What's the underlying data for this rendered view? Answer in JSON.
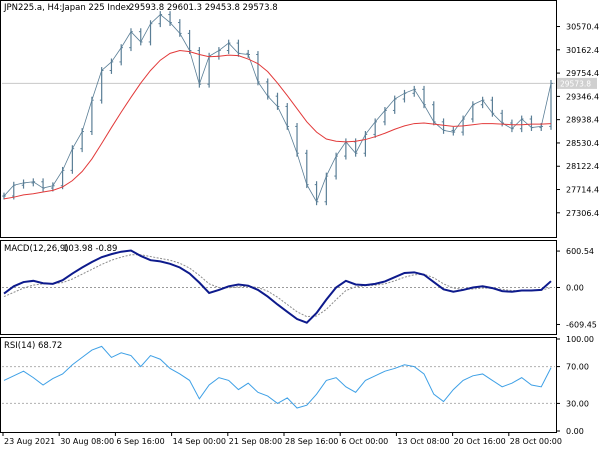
{
  "chart_data": [
    {
      "type": "line",
      "panel": "price",
      "header": {
        "symbol": "JPN225.a, H4:",
        "description": "Japan 225 Index",
        "ohlc": "29593.8 29601.3 29453.8 29573.8"
      },
      "current_price_label": "29573.8",
      "y_ticks": [
        30570.4,
        30162.4,
        29754.4,
        29346.4,
        28938.4,
        28530.4,
        28122.4,
        27714.4,
        27306.4
      ],
      "ylim": [
        26900,
        31000
      ],
      "x_ticks": [
        "23 Aug 2021",
        "30 Aug 08:00",
        "6 Sep 16:00",
        "14 Sep 00:00",
        "21 Sep 08:00",
        "28 Sep 16:00",
        "6 Oct 00:00",
        "13 Oct 08:00",
        "20 Oct 16:00",
        "28 Oct 00:00"
      ],
      "series": [
        {
          "role": "price bars",
          "color": "#5a7e96",
          "x": [
            0,
            10,
            20,
            30,
            40,
            50,
            60,
            70,
            80,
            90,
            100,
            110,
            120,
            130,
            140,
            150,
            160,
            170,
            180,
            190,
            200,
            210,
            220,
            230,
            240,
            250,
            260,
            270,
            280,
            290,
            300,
            310,
            320,
            330,
            340,
            350,
            360,
            370,
            380,
            390,
            400,
            410,
            420,
            430,
            440,
            450,
            460,
            470,
            480,
            490,
            500,
            510,
            520,
            530,
            540,
            550,
            560
          ],
          "values": [
            27600,
            27790,
            27830,
            27850,
            27740,
            27780,
            28050,
            28430,
            28730,
            29280,
            29800,
            29950,
            30200,
            30480,
            30300,
            30620,
            30780,
            30640,
            30450,
            30150,
            29560,
            30050,
            30150,
            30280,
            30100,
            30080,
            29600,
            29350,
            29170,
            28820,
            28350,
            27800,
            27500,
            27950,
            28300,
            28550,
            28350,
            28680,
            28900,
            29100,
            29300,
            29400,
            29470,
            29200,
            28900,
            28750,
            28720,
            28950,
            29200,
            29280,
            29050,
            28880,
            28780,
            28950,
            28800,
            28820,
            29573.8
          ]
        },
        {
          "role": "moving average",
          "color": "#e23a3a",
          "x": [
            0,
            10,
            20,
            30,
            40,
            50,
            60,
            70,
            80,
            90,
            100,
            110,
            120,
            130,
            140,
            150,
            160,
            170,
            180,
            190,
            200,
            210,
            220,
            230,
            240,
            250,
            260,
            270,
            280,
            290,
            300,
            310,
            320,
            330,
            340,
            350,
            360,
            370,
            380,
            390,
            400,
            410,
            420,
            430,
            440,
            450,
            460,
            470,
            480,
            490,
            500,
            510,
            520,
            530,
            540,
            550,
            560
          ],
          "values": [
            27550,
            27580,
            27620,
            27640,
            27670,
            27700,
            27760,
            27870,
            28030,
            28250,
            28520,
            28800,
            29070,
            29330,
            29580,
            29800,
            29980,
            30100,
            30150,
            30130,
            30080,
            30040,
            30050,
            30070,
            30060,
            30000,
            29920,
            29780,
            29580,
            29360,
            29130,
            28900,
            28720,
            28600,
            28560,
            28550,
            28560,
            28590,
            28640,
            28700,
            28770,
            28830,
            28870,
            28880,
            28860,
            28840,
            28820,
            28830,
            28850,
            28870,
            28870,
            28860,
            28850,
            28850,
            28860,
            28860,
            28870
          ]
        }
      ]
    },
    {
      "type": "line",
      "panel": "macd",
      "header": {
        "label": "MACD(12,26,9)",
        "values_text": "103.98 -0.89"
      },
      "y_ticks": [
        600.54,
        0.0,
        -609.45
      ],
      "y_tick_labels": [
        "600.54",
        "0.00",
        "-609.45"
      ],
      "ylim": [
        -750,
        750
      ],
      "series": [
        {
          "role": "macd line",
          "color": "#0d1a8c",
          "x": [
            0,
            10,
            20,
            30,
            40,
            50,
            60,
            70,
            80,
            90,
            100,
            110,
            120,
            130,
            140,
            150,
            160,
            170,
            180,
            190,
            200,
            210,
            220,
            230,
            240,
            250,
            260,
            270,
            280,
            290,
            300,
            310,
            320,
            330,
            340,
            350,
            360,
            370,
            380,
            390,
            400,
            410,
            420,
            430,
            440,
            450,
            460,
            470,
            480,
            490,
            500,
            510,
            520,
            530,
            540,
            550,
            560
          ],
          "values": [
            -100,
            20,
            90,
            110,
            70,
            60,
            120,
            230,
            330,
            420,
            500,
            550,
            590,
            610,
            520,
            450,
            430,
            390,
            330,
            230,
            80,
            -90,
            -40,
            20,
            50,
            30,
            -40,
            -150,
            -280,
            -400,
            -520,
            -580,
            -420,
            -200,
            0,
            110,
            50,
            40,
            60,
            100,
            170,
            240,
            250,
            210,
            90,
            -30,
            -70,
            -40,
            0,
            20,
            -10,
            -60,
            -70,
            -50,
            -50,
            -40,
            103.98
          ]
        },
        {
          "role": "signal line",
          "color": "#8c8c8c",
          "x": [
            0,
            10,
            20,
            30,
            40,
            50,
            60,
            70,
            80,
            90,
            100,
            110,
            120,
            130,
            140,
            150,
            160,
            170,
            180,
            190,
            200,
            210,
            220,
            230,
            240,
            250,
            260,
            270,
            280,
            290,
            300,
            310,
            320,
            330,
            340,
            350,
            360,
            370,
            380,
            390,
            400,
            410,
            420,
            430,
            440,
            450,
            460,
            470,
            480,
            490,
            500,
            510,
            520,
            530,
            540,
            550,
            560
          ],
          "values": [
            -150,
            -80,
            -10,
            40,
            60,
            65,
            80,
            140,
            220,
            300,
            380,
            450,
            500,
            540,
            540,
            510,
            480,
            450,
            400,
            320,
            200,
            60,
            0,
            -5,
            10,
            20,
            0,
            -60,
            -160,
            -280,
            -400,
            -480,
            -470,
            -360,
            -200,
            -50,
            10,
            30,
            40,
            60,
            110,
            170,
            210,
            220,
            160,
            60,
            -10,
            -30,
            -25,
            -10,
            -10,
            -30,
            -50,
            -55,
            -50,
            -45,
            -0.89
          ]
        }
      ]
    },
    {
      "type": "line",
      "panel": "rsi",
      "header": {
        "label": "RSI(14)",
        "value_text": "68.72"
      },
      "y_ticks": [
        100.0,
        70.0,
        30.0,
        0.0
      ],
      "y_tick_labels": [
        "100.00",
        "70.00",
        "30.00",
        "0.00"
      ],
      "ylim": [
        0,
        100
      ],
      "series": [
        {
          "role": "rsi",
          "color": "#3ea0e6",
          "x": [
            0,
            10,
            20,
            30,
            40,
            50,
            60,
            70,
            80,
            90,
            100,
            110,
            120,
            130,
            140,
            150,
            160,
            170,
            180,
            190,
            200,
            210,
            220,
            230,
            240,
            250,
            260,
            270,
            280,
            290,
            300,
            310,
            320,
            330,
            340,
            350,
            360,
            370,
            380,
            390,
            400,
            410,
            420,
            430,
            440,
            450,
            460,
            470,
            480,
            490,
            500,
            510,
            520,
            530,
            540,
            550,
            560
          ],
          "values": [
            55,
            60,
            65,
            58,
            50,
            57,
            62,
            72,
            80,
            88,
            92,
            80,
            85,
            82,
            70,
            82,
            78,
            68,
            62,
            55,
            35,
            50,
            58,
            55,
            45,
            52,
            42,
            38,
            30,
            36,
            25,
            28,
            40,
            55,
            58,
            48,
            42,
            55,
            60,
            65,
            68,
            72,
            70,
            62,
            40,
            32,
            45,
            55,
            60,
            62,
            55,
            48,
            52,
            58,
            50,
            48,
            68.72
          ]
        }
      ]
    }
  ]
}
